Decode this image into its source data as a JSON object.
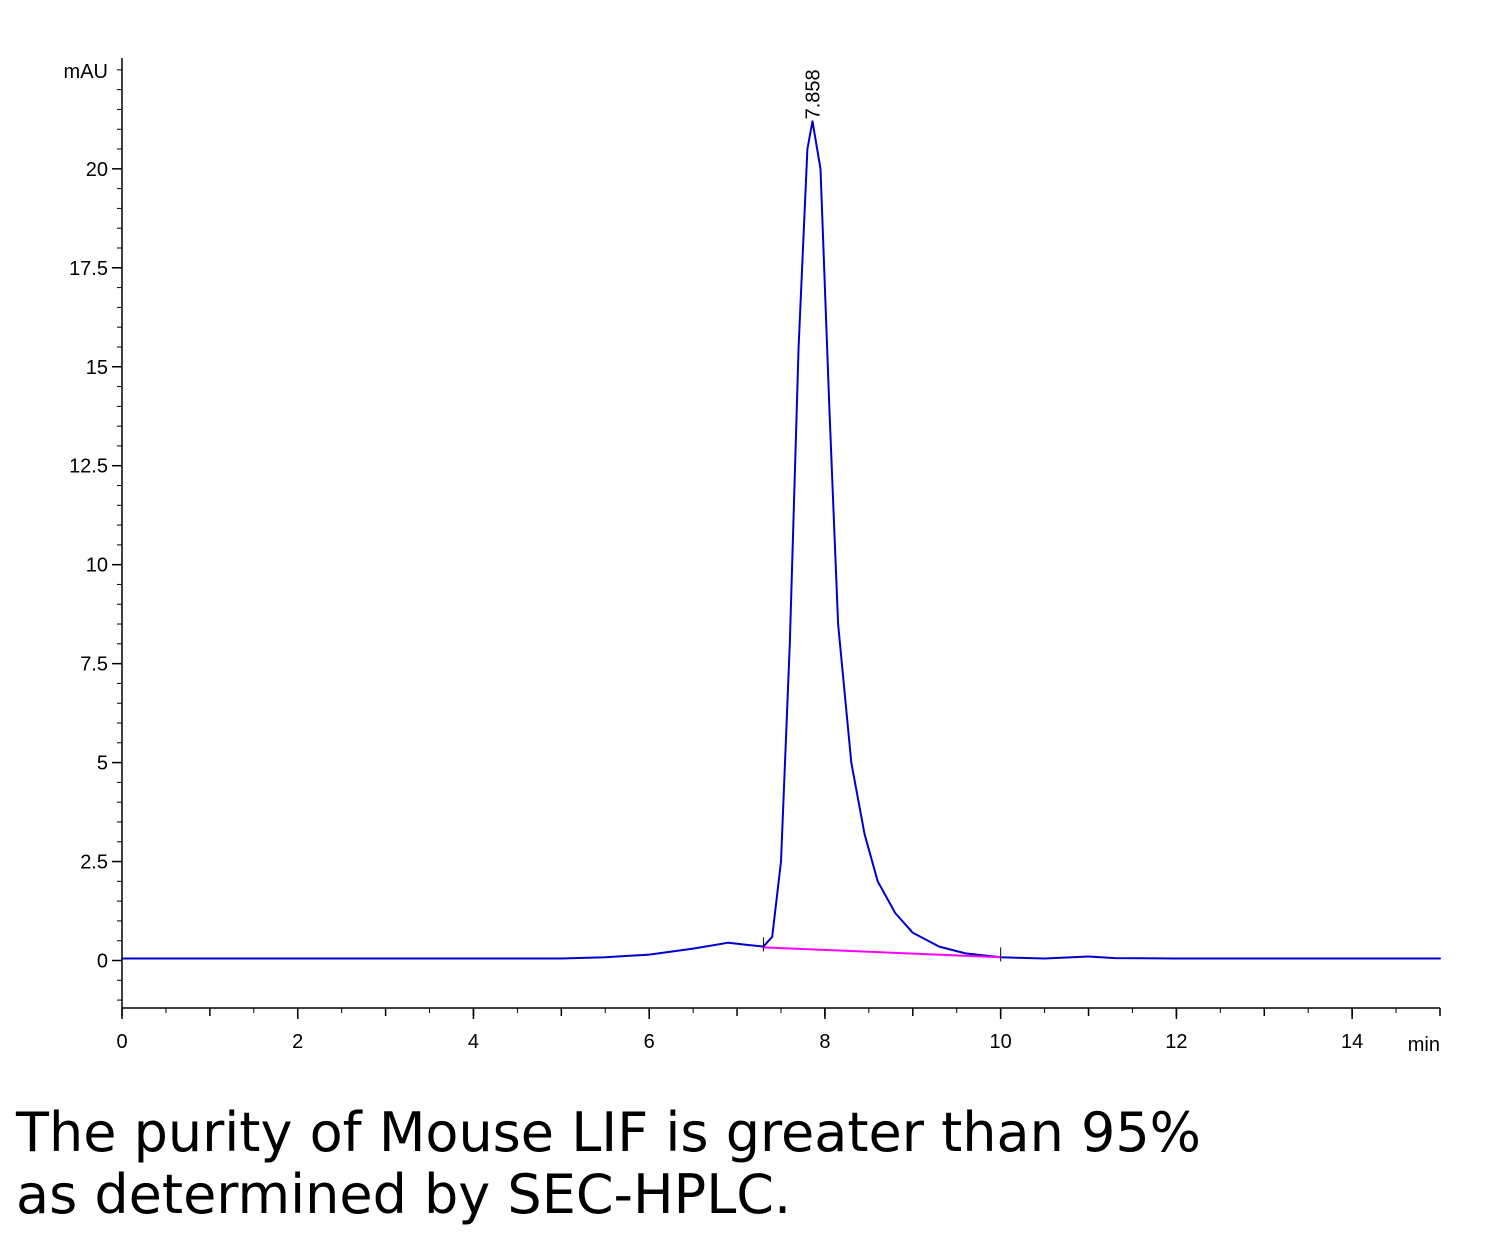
{
  "chart_data": {
    "type": "line",
    "xlabel": "min",
    "ylabel": "mAU",
    "xlim": [
      0,
      15
    ],
    "ylim": [
      -1.2,
      22.8
    ],
    "x_ticks": [
      0,
      2,
      4,
      6,
      8,
      10,
      12,
      14
    ],
    "y_ticks": [
      0,
      2.5,
      5,
      7.5,
      10,
      12.5,
      15,
      17.5,
      20
    ],
    "y_tick_labels": [
      "0",
      "2.5",
      "5",
      "7.5",
      "10",
      "12.5",
      "15",
      "17.5",
      "20"
    ],
    "grid": false,
    "series": [
      {
        "color": "#0000cc",
        "x": [
          0,
          1,
          2,
          3,
          4,
          5,
          5.5,
          6,
          6.5,
          6.9,
          7.1,
          7.3,
          7.4,
          7.5,
          7.6,
          7.7,
          7.8,
          7.858,
          7.95,
          8.05,
          8.15,
          8.3,
          8.45,
          8.6,
          8.8,
          9.0,
          9.3,
          9.6,
          10.0,
          10.5,
          11.0,
          11.3,
          12,
          13,
          14,
          15
        ],
        "y": [
          0.05,
          0.05,
          0.05,
          0.05,
          0.05,
          0.05,
          0.08,
          0.15,
          0.3,
          0.45,
          0.4,
          0.35,
          0.6,
          2.5,
          8.0,
          15.5,
          20.5,
          21.2,
          20.0,
          14.0,
          8.5,
          5.0,
          3.2,
          2.0,
          1.2,
          0.7,
          0.35,
          0.18,
          0.08,
          0.05,
          0.1,
          0.06,
          0.05,
          0.05,
          0.05,
          0.05
        ]
      },
      {
        "color": "#ff00ff",
        "x": [
          7.3,
          10.0
        ],
        "y": [
          0.33,
          0.08
        ]
      }
    ],
    "annotations": [
      {
        "x": 7.858,
        "y": 21.4,
        "text": "7.858"
      }
    ]
  },
  "caption": {
    "line1": "The purity of Mouse LIF is greater than 95%",
    "line2": "as determined by SEC-HPLC."
  }
}
